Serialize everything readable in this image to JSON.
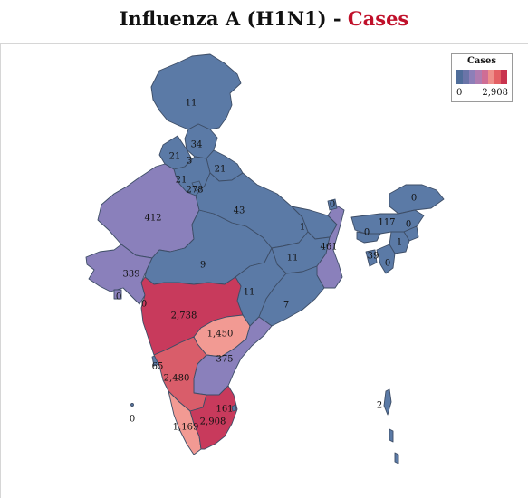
{
  "title": {
    "main": "Influenza A (H1N1) - ",
    "accent": "Cases"
  },
  "legend": {
    "title": "Cases",
    "min_label": "0",
    "max_label": "2,908",
    "colors": [
      "#4f6d9a",
      "#6a74a8",
      "#8d7fb8",
      "#b07cb0",
      "#cf6d95",
      "#ee8f8a",
      "#e46064",
      "#c9344f"
    ]
  },
  "colors": {
    "low": "#5b7aa6",
    "low_mid": "#8a80bb",
    "mid_purple": "#9384c0",
    "salmon": "#f29a93",
    "red_mid": "#d95d6a",
    "red_high": "#c83a5c",
    "accent": "#c0102a"
  },
  "regions": [
    {
      "name": "Jammu and Kashmir",
      "value": 11,
      "label": "11"
    },
    {
      "name": "Himachal Pradesh",
      "value": 34,
      "label": "34"
    },
    {
      "name": "Punjab",
      "value": 21,
      "label": "21"
    },
    {
      "name": "Chandigarh",
      "value": 3,
      "label": "3"
    },
    {
      "name": "Uttarakhand",
      "value": 21,
      "label": "21"
    },
    {
      "name": "Haryana",
      "value": 21,
      "label": "21"
    },
    {
      "name": "Delhi",
      "value": 278,
      "label": "278"
    },
    {
      "name": "Rajasthan",
      "value": 412,
      "label": "412"
    },
    {
      "name": "Uttar Pradesh",
      "value": 43,
      "label": "43"
    },
    {
      "name": "Bihar",
      "value": 1,
      "label": "1"
    },
    {
      "name": "Sikkim",
      "value": 0,
      "label": "0"
    },
    {
      "name": "Arunachal Pradesh",
      "value": 0,
      "label": "0"
    },
    {
      "name": "Assam",
      "value": 117,
      "label": "117"
    },
    {
      "name": "Meghalaya",
      "value": 0,
      "label": "0"
    },
    {
      "name": "Nagaland",
      "value": 0,
      "label": "0"
    },
    {
      "name": "Manipur",
      "value": 1,
      "label": "1"
    },
    {
      "name": "Mizoram",
      "value": 0,
      "label": "0"
    },
    {
      "name": "Tripura",
      "value": 39,
      "label": "39"
    },
    {
      "name": "West Bengal",
      "value": 461,
      "label": "461"
    },
    {
      "name": "Jharkhand",
      "value": 11,
      "label": "11"
    },
    {
      "name": "Gujarat",
      "value": 339,
      "label": "339"
    },
    {
      "name": "Daman and Diu",
      "value": 0,
      "label": "0"
    },
    {
      "name": "Dadra and Nagar Haveli",
      "value": 0,
      "label": "0"
    },
    {
      "name": "Madhya Pradesh",
      "value": 9,
      "label": "9"
    },
    {
      "name": "Chhattisgarh",
      "value": 11,
      "label": "11"
    },
    {
      "name": "Odisha",
      "value": 7,
      "label": "7"
    },
    {
      "name": "Maharashtra",
      "value": 2738,
      "label": "2,738"
    },
    {
      "name": "Telangana",
      "value": 1450,
      "label": "1,450"
    },
    {
      "name": "Andhra Pradesh",
      "value": 375,
      "label": "375"
    },
    {
      "name": "Goa",
      "value": 65,
      "label": "65"
    },
    {
      "name": "Karnataka",
      "value": 2480,
      "label": "2,480"
    },
    {
      "name": "Lakshadweep",
      "value": 0,
      "label": "0"
    },
    {
      "name": "Kerala",
      "value": 1169,
      "label": "1,169"
    },
    {
      "name": "Tamil Nadu",
      "value": 2908,
      "label": "2,908"
    },
    {
      "name": "Puducherry",
      "value": 161,
      "label": "161"
    },
    {
      "name": "Andaman and Nicobar Islands",
      "value": 2,
      "label": "2"
    }
  ]
}
